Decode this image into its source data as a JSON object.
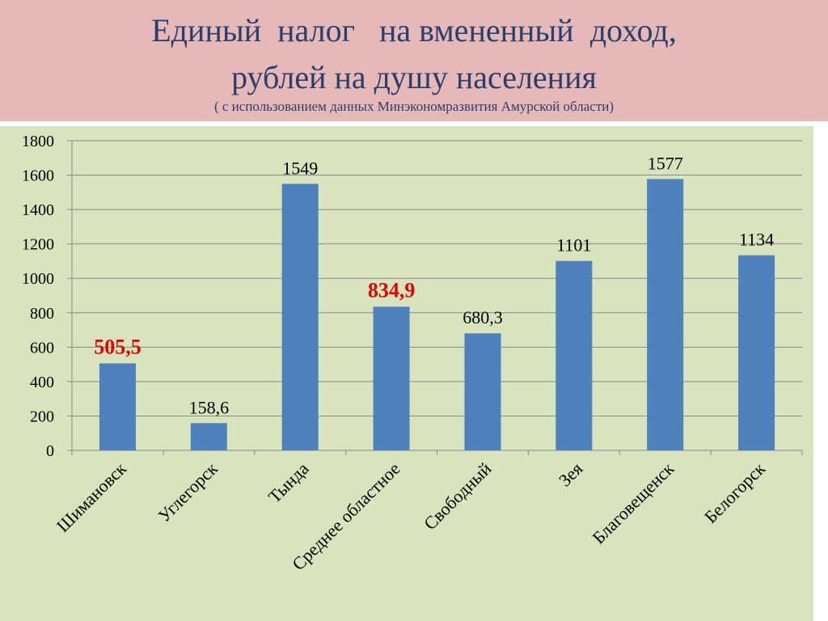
{
  "slide": {
    "title_line1": "Единый  налог   на вмененный  доход,",
    "title_line2": "рублей на душу населения",
    "subtitle": "( с использованием данных Минэкономразвития Амурской области)"
  },
  "colors": {
    "header_bg": "#e6b9b8",
    "title_text": "#2a3f6b",
    "plot_bg": "#d7e4bd",
    "bar": "#4f81bd",
    "highlight_label": "#e00000"
  },
  "chart_data": {
    "type": "bar",
    "categories": [
      "Шимановск",
      "Углегорск",
      "Тында",
      "Среднее областное",
      "Свободный",
      "Зея",
      "Благовещенск",
      "Белогорск"
    ],
    "values": [
      505.5,
      158.6,
      1549,
      834.9,
      680.3,
      1101,
      1577,
      1134
    ],
    "data_labels": [
      "505,5",
      "158,6",
      "1549",
      "834,9",
      "680,3",
      "1101",
      "1577",
      "1134"
    ],
    "highlighted": [
      "Шимановск",
      "Среднее областное"
    ],
    "ylim": [
      0,
      1800
    ],
    "yticks": [
      0,
      200,
      400,
      600,
      800,
      1000,
      1200,
      1400,
      1600,
      1800
    ],
    "grid": true,
    "legend": "none"
  }
}
